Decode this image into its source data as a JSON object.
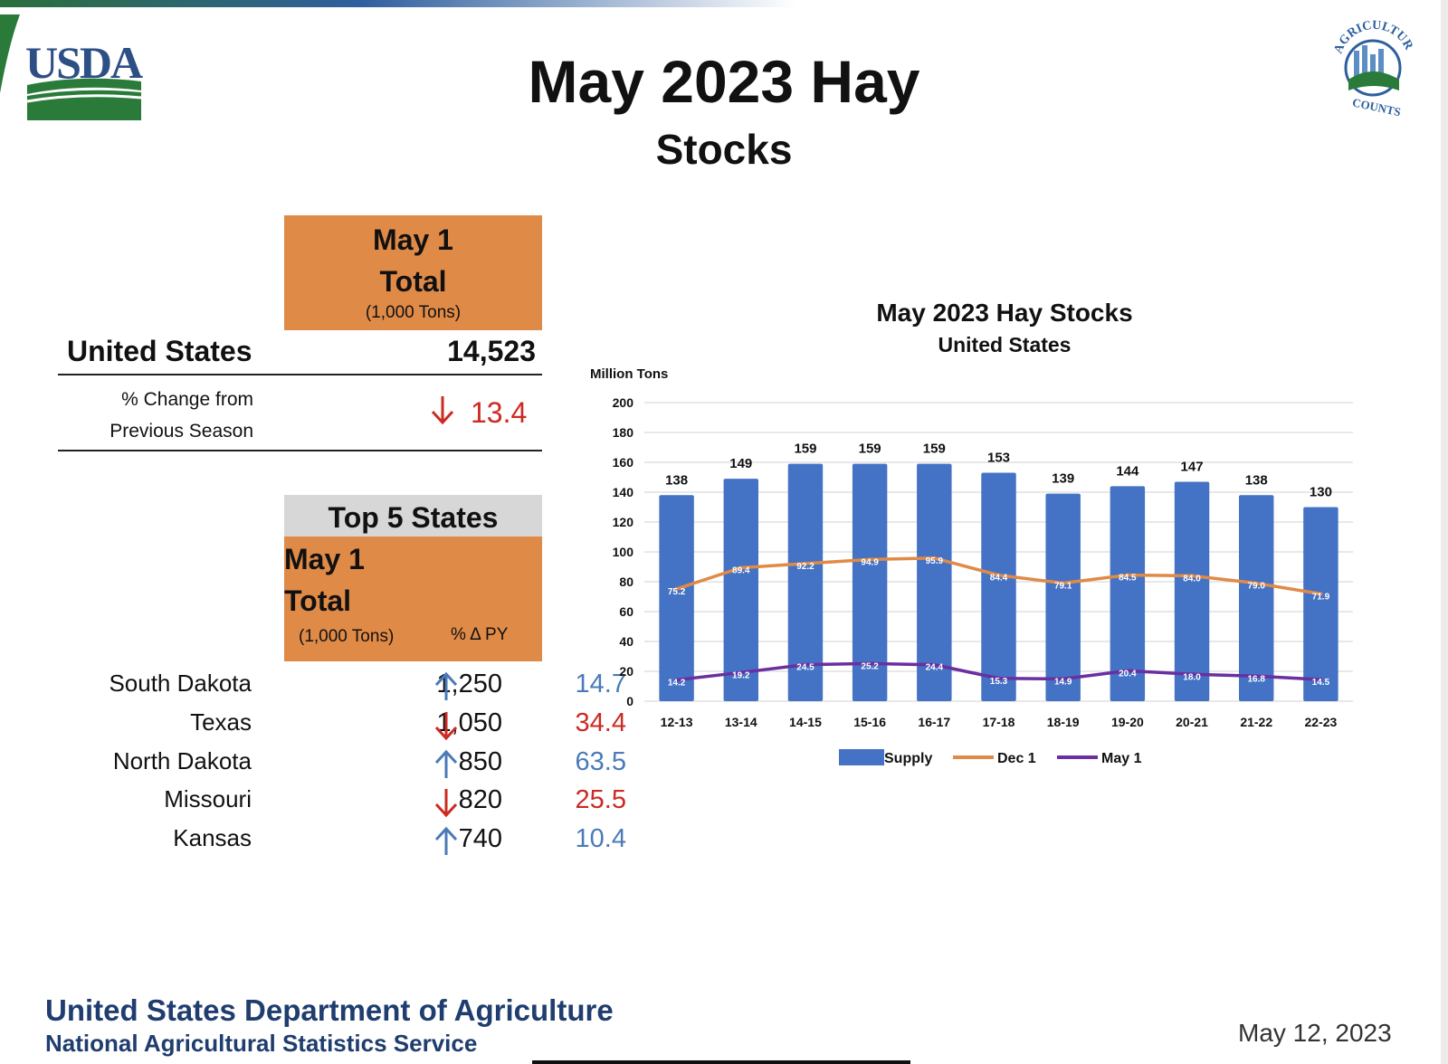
{
  "header": {
    "title": "May 2023 Hay",
    "subtitle": "Stocks",
    "usda_logo_text": "USDA",
    "ag_counts_logo_text": "AGRICULTURE COUNTS"
  },
  "summary": {
    "header_line1": "May 1",
    "header_line2": "Total",
    "header_unit": "(1,000 Tons)",
    "region": "United States",
    "value": "14,523",
    "pct_label_line1": "% Change from",
    "pct_label_line2": "Previous Season",
    "pct_value": "13.4",
    "pct_direction": "down"
  },
  "top5": {
    "title": "Top 5 States",
    "header_line1": "May 1",
    "header_line2": "Total",
    "unit_label": "(1,000 Tons)",
    "pct_label": "% Δ PY",
    "rows": [
      {
        "state": "South Dakota",
        "value": "1,250",
        "direction": "up",
        "pct": "14.7"
      },
      {
        "state": "Texas",
        "value": "1,050",
        "direction": "down",
        "pct": "34.4"
      },
      {
        "state": "North Dakota",
        "value": "850",
        "direction": "up",
        "pct": "63.5"
      },
      {
        "state": "Missouri",
        "value": "820",
        "direction": "down",
        "pct": "25.5"
      },
      {
        "state": "Kansas",
        "value": "740",
        "direction": "up",
        "pct": "10.4"
      }
    ]
  },
  "colors": {
    "orange_header": "#e08a47",
    "up": "#4a7ab8",
    "down": "#cc2a22",
    "supply": "#4472c4",
    "dec1": "#e08a47",
    "may1": "#6a2fa0"
  },
  "chart_data": {
    "type": "bar",
    "title": "May 2023 Hay Stocks",
    "subtitle": "United States",
    "ylabel": "Million Tons",
    "ylim": [
      0,
      200
    ],
    "yticks": [
      0,
      20,
      40,
      60,
      80,
      100,
      120,
      140,
      160,
      180,
      200
    ],
    "grid": true,
    "legend_position": "bottom",
    "categories": [
      "12-13",
      "13-14",
      "14-15",
      "15-16",
      "16-17",
      "17-18",
      "18-19",
      "19-20",
      "20-21",
      "21-22",
      "22-23"
    ],
    "series": [
      {
        "name": "Supply",
        "type": "bar",
        "values": [
          138,
          149,
          159,
          159,
          159,
          153,
          139,
          144,
          147,
          138,
          130
        ]
      },
      {
        "name": "Dec 1",
        "type": "line",
        "values": [
          75.2,
          89.4,
          92.2,
          94.9,
          95.9,
          84.4,
          79.1,
          84.5,
          84.0,
          79.0,
          71.9
        ]
      },
      {
        "name": "May 1",
        "type": "line",
        "values": [
          14.2,
          19.2,
          24.5,
          25.2,
          24.4,
          15.3,
          14.9,
          20.4,
          18.0,
          16.8,
          14.5
        ]
      }
    ]
  },
  "footer": {
    "agency": "United States Department of Agriculture",
    "service": "National Agricultural Statistics Service",
    "date": "May 12, 2023"
  }
}
